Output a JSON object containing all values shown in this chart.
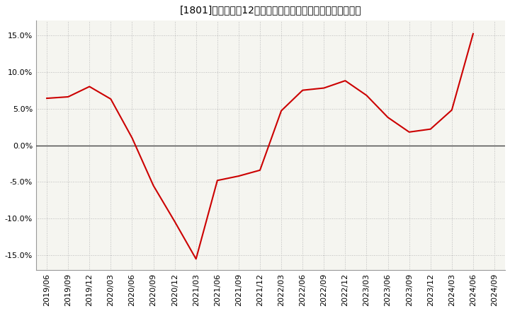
{
  "title": "[1801]　売上高の12か月移動合計の対前年同期増減率の推移",
  "line_color": "#cc0000",
  "background_color": "#ffffff",
  "plot_bg_color": "#f5f5f0",
  "grid_color": "#bbbbbb",
  "zero_line_color": "#444444",
  "ylim": [
    -0.17,
    0.17
  ],
  "yticks": [
    -0.15,
    -0.1,
    -0.05,
    0.0,
    0.05,
    0.1,
    0.15
  ],
  "ytick_labels": [
    "-15.0%",
    "-10.0%",
    "-5.0%",
    "0.0%",
    "5.0%",
    "10.0%",
    "15.0%"
  ],
  "dates": [
    "2019/06",
    "2019/09",
    "2019/12",
    "2020/03",
    "2020/06",
    "2020/09",
    "2020/12",
    "2021/03",
    "2021/06",
    "2021/09",
    "2021/12",
    "2022/03",
    "2022/06",
    "2022/09",
    "2022/12",
    "2023/03",
    "2023/06",
    "2023/09",
    "2023/12",
    "2024/03",
    "2024/06",
    "2024/09"
  ],
  "values": [
    0.064,
    0.066,
    0.08,
    0.063,
    0.01,
    -0.055,
    -0.104,
    -0.155,
    -0.048,
    -0.042,
    -0.034,
    0.047,
    0.075,
    0.078,
    0.088,
    0.068,
    0.038,
    0.018,
    0.022,
    0.048,
    0.152,
    null
  ],
  "title_fontsize": 11,
  "tick_fontsize": 8
}
